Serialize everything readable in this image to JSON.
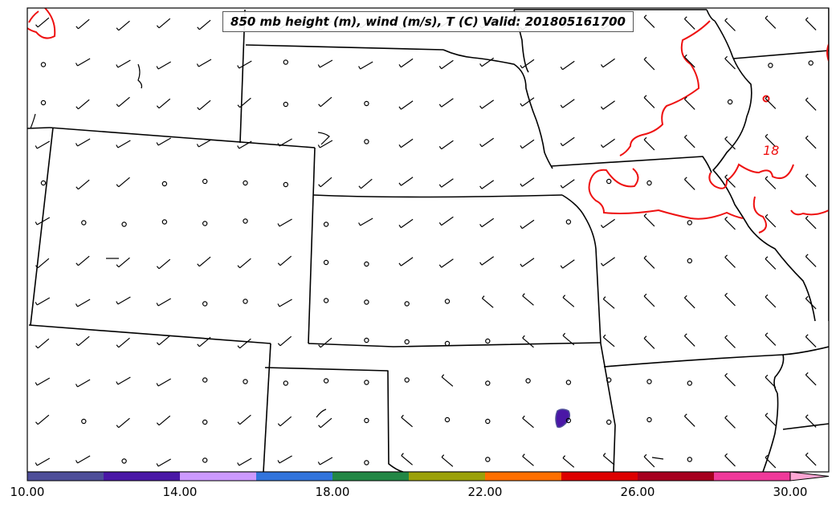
{
  "title": "850 mb height (m), wind (m/s), T (C) Valid: 201805161700",
  "contour_label": {
    "text": "18",
    "color": "#ee1111"
  },
  "colorbar": {
    "colors": [
      "#4e4e99",
      "#4a17a6",
      "#cc99ff",
      "#3274dc",
      "#228745",
      "#9ba10a",
      "#ff6f00",
      "#dd0000",
      "#a6001f",
      "#f0399a"
    ],
    "extend_color": "#ffa6d4",
    "tick_labels": [
      "10.00",
      "14.00",
      "18.00",
      "22.00",
      "26.00",
      "30.00"
    ],
    "tick_values": [
      10,
      14,
      18,
      22,
      26,
      30
    ],
    "range": [
      10,
      31
    ]
  },
  "chart_data": {
    "type": "map",
    "variables": [
      "850 mb height (m)",
      "wind (m/s)",
      "T (C)"
    ],
    "valid_time": "201805161700",
    "contour_levels_labeled": [
      18
    ],
    "colorbar_range": [
      10,
      31
    ],
    "features": [
      "state boundaries",
      "wind barbs",
      "calm wind circles",
      "temperature contour",
      "temperature fill"
    ]
  }
}
